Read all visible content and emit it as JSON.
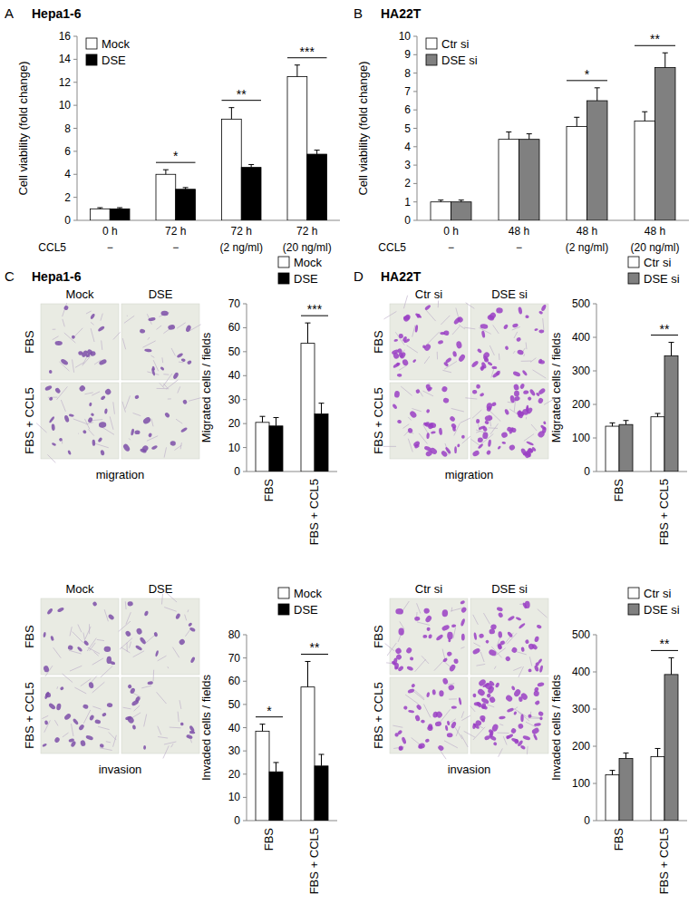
{
  "chart_data": [
    {
      "type": "bar",
      "panel": "A",
      "title": "Hepa1-6",
      "y_label": "Cell viability (fold change)",
      "categories": [
        "0 h",
        "72 h",
        "72 h",
        "72 h"
      ],
      "subcategory_label": "CCL5",
      "subcategories": [
        "−",
        "−",
        "(2 ng/ml)",
        "(20 ng/ml)"
      ],
      "series": [
        {
          "name": "Mock",
          "color": "#ffffff",
          "values": [
            1,
            4.0,
            8.8,
            12.5
          ],
          "errors": [
            0.1,
            0.4,
            1.0,
            1.0
          ]
        },
        {
          "name": "DSE",
          "color": "#000000",
          "values": [
            1,
            2.7,
            4.6,
            5.75
          ],
          "errors": [
            0.1,
            0.15,
            0.25,
            0.35
          ]
        }
      ],
      "significance": [
        {
          "index": 1,
          "label": "*"
        },
        {
          "index": 2,
          "label": "**"
        },
        {
          "index": 3,
          "label": "***"
        }
      ],
      "ylim": [
        0,
        16
      ],
      "yticks": [
        0,
        2,
        4,
        6,
        8,
        10,
        12,
        14,
        16
      ],
      "legend": "upper left"
    },
    {
      "type": "bar",
      "panel": "B",
      "title": "HA22T",
      "y_label": "Cell viability (fold change)",
      "categories": [
        "0 h",
        "48 h",
        "48 h",
        "48 h"
      ],
      "subcategory_label": "CCL5",
      "subcategories": [
        "−",
        "−",
        "(2 ng/ml)",
        "(20 ng/ml)"
      ],
      "series": [
        {
          "name": "Ctr si",
          "color": "#ffffff",
          "values": [
            1,
            4.4,
            5.1,
            5.4
          ],
          "errors": [
            0.1,
            0.4,
            0.5,
            0.5
          ]
        },
        {
          "name": "DSE si",
          "color": "#808080",
          "values": [
            1,
            4.4,
            6.5,
            8.3
          ],
          "errors": [
            0.1,
            0.3,
            0.7,
            0.8
          ]
        }
      ],
      "significance": [
        {
          "index": 2,
          "label": "*"
        },
        {
          "index": 3,
          "label": "**"
        }
      ],
      "ylim": [
        0,
        10
      ],
      "yticks": [
        0,
        1,
        2,
        3,
        4,
        5,
        6,
        7,
        8,
        9,
        10
      ],
      "legend": "upper left"
    },
    {
      "type": "bar",
      "y_label": "Migrated cells / fields",
      "categories": [
        "FBS",
        "FBS + CCL5"
      ],
      "series": [
        {
          "name": "Mock",
          "color": "#ffffff",
          "values": [
            20.5,
            53.5
          ],
          "errors": [
            2.5,
            8.5
          ]
        },
        {
          "name": "DSE",
          "color": "#000000",
          "values": [
            19,
            24
          ],
          "errors": [
            3.5,
            4.5
          ]
        }
      ],
      "significance": [
        {
          "index": 1,
          "label": "***"
        }
      ],
      "ylim": [
        0,
        70
      ],
      "yticks": [
        0,
        10,
        20,
        30,
        40,
        50,
        60,
        70
      ],
      "legend": "top"
    },
    {
      "type": "bar",
      "y_label": "Invaded cells / fields",
      "categories": [
        "FBS",
        "FBS + CCL5"
      ],
      "series": [
        {
          "name": "Mock",
          "color": "#ffffff",
          "values": [
            38.5,
            57.5
          ],
          "errors": [
            3,
            11
          ]
        },
        {
          "name": "DSE",
          "color": "#000000",
          "values": [
            21,
            23.5
          ],
          "errors": [
            4,
            5
          ]
        }
      ],
      "significance": [
        {
          "index": 0,
          "label": "*"
        },
        {
          "index": 1,
          "label": "**"
        }
      ],
      "ylim": [
        0,
        80
      ],
      "yticks": [
        0,
        10,
        20,
        30,
        40,
        50,
        60,
        70,
        80
      ],
      "legend": "top"
    },
    {
      "type": "bar",
      "y_label": "Migrated cells / fields",
      "categories": [
        "FBS",
        "FBS + CCL5"
      ],
      "series": [
        {
          "name": "Ctr si",
          "color": "#ffffff",
          "values": [
            135,
            163
          ],
          "errors": [
            10,
            10
          ]
        },
        {
          "name": "DSE si",
          "color": "#808080",
          "values": [
            140,
            345
          ],
          "errors": [
            12,
            40
          ]
        }
      ],
      "significance": [
        {
          "index": 1,
          "label": "**"
        }
      ],
      "ylim": [
        0,
        500
      ],
      "yticks": [
        0,
        100,
        200,
        300,
        400,
        500
      ],
      "legend": "top"
    },
    {
      "type": "bar",
      "y_label": "Invaded cells / fields",
      "categories": [
        "FBS",
        "FBS + CCL5"
      ],
      "series": [
        {
          "name": "Ctr si",
          "color": "#ffffff",
          "values": [
            123,
            172
          ],
          "errors": [
            12,
            22
          ]
        },
        {
          "name": "DSE si",
          "color": "#808080",
          "values": [
            167,
            393
          ],
          "errors": [
            15,
            45
          ]
        }
      ],
      "significance": [
        {
          "index": 1,
          "label": "**"
        }
      ],
      "ylim": [
        0,
        500
      ],
      "yticks": [
        0,
        100,
        200,
        300,
        400,
        500
      ],
      "legend": "top"
    }
  ],
  "image_panels": [
    {
      "panel": "C",
      "title": "Hepa1-6",
      "columns": [
        "Mock",
        "DSE"
      ],
      "rows": [
        "FBS",
        "FBS + CCL5"
      ],
      "captions": [
        "migration",
        "invasion"
      ]
    },
    {
      "panel": "D",
      "title": "HA22T",
      "columns": [
        "Ctr si",
        "DSE si"
      ],
      "rows": [
        "FBS",
        "FBS + CCL5"
      ],
      "captions": [
        "migration",
        "invasion"
      ]
    }
  ]
}
